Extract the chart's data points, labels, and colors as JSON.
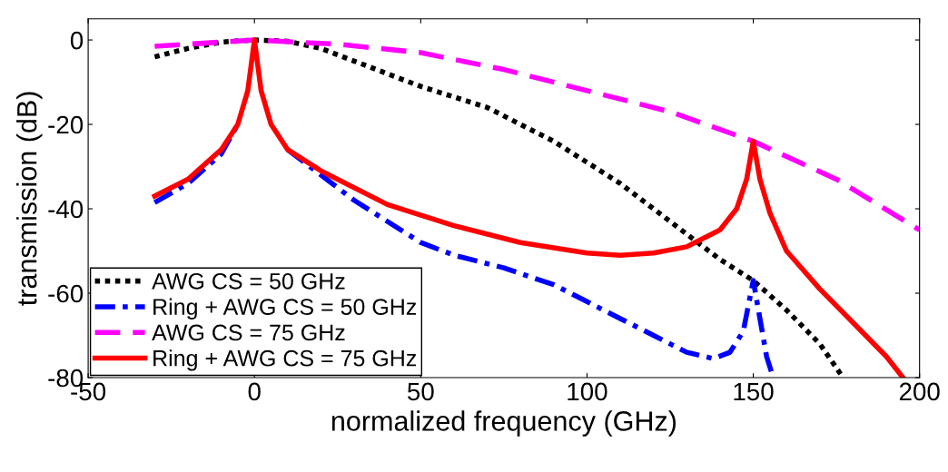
{
  "chart_data": {
    "type": "line",
    "xlabel": "normalized frequency (GHz)",
    "ylabel": "transmission (dB)",
    "xlim": [
      -50,
      200
    ],
    "xticks": [
      -50,
      0,
      50,
      100,
      150,
      200
    ],
    "ylim": [
      -80,
      5
    ],
    "yticks": [
      -80,
      -60,
      -40,
      -20,
      0
    ],
    "grid": false,
    "legend": "bottom left",
    "series": [
      {
        "name": "AWG CS = 50 GHz",
        "color": "#000000",
        "line_style": "dotted",
        "x": [
          -30,
          -20,
          -10,
          0,
          10,
          20,
          30,
          50,
          70,
          90,
          100,
          110,
          120,
          130,
          140,
          150,
          160,
          170,
          177
        ],
        "values": [
          -4,
          -2,
          -0.5,
          0,
          -0.3,
          -2,
          -5,
          -11,
          -16,
          -24,
          -29,
          -34,
          -40,
          -46,
          -52,
          -57,
          -64,
          -72,
          -80
        ]
      },
      {
        "name": "Ring + AWG CS = 50 GHz",
        "color": "#0000ff",
        "line_style": "dashdot",
        "x": [
          -30,
          -20,
          -10,
          -5,
          -2,
          -1,
          0,
          1,
          2,
          5,
          10,
          20,
          30,
          40,
          50,
          60,
          75,
          90,
          100,
          110,
          120,
          130,
          138,
          143,
          147,
          150,
          152,
          154,
          156
        ],
        "values": [
          -38.5,
          -34,
          -27,
          -20,
          null,
          null,
          null,
          null,
          null,
          null,
          -26,
          -32,
          -38,
          -43,
          -48,
          -51,
          -54,
          -58,
          -62,
          -66,
          -70,
          -74,
          -75.5,
          -74,
          -69,
          -57,
          -66,
          -75,
          -80
        ]
      },
      {
        "name": "AWG CS = 75 GHz",
        "color": "#ff00ff",
        "line_style": "dashed",
        "x": [
          -30,
          0,
          25,
          50,
          75,
          100,
          125,
          150,
          175,
          200
        ],
        "values": [
          -1.5,
          0,
          -1,
          -3,
          -7,
          -12,
          -17,
          -24,
          -33,
          -45
        ]
      },
      {
        "name": "Ring + AWG CS = 75 GHz",
        "color": "#ff0000",
        "line_style": "solid",
        "x": [
          -30,
          -20,
          -10,
          -5,
          -2,
          -1,
          0,
          1,
          2,
          5,
          10,
          20,
          40,
          60,
          80,
          100,
          110,
          120,
          130,
          140,
          145,
          148,
          150,
          152,
          155,
          160,
          170,
          180,
          190,
          195
        ],
        "values": [
          -37,
          -33,
          -26,
          -20,
          -12,
          -6,
          0,
          -6,
          -12,
          -20,
          -26,
          -31,
          -39,
          -44,
          -48,
          -50.5,
          -51,
          -50.5,
          -49,
          -45,
          -40,
          -33,
          -24,
          -33,
          -41,
          -50,
          -59,
          -67,
          -75,
          -80
        ]
      }
    ]
  }
}
